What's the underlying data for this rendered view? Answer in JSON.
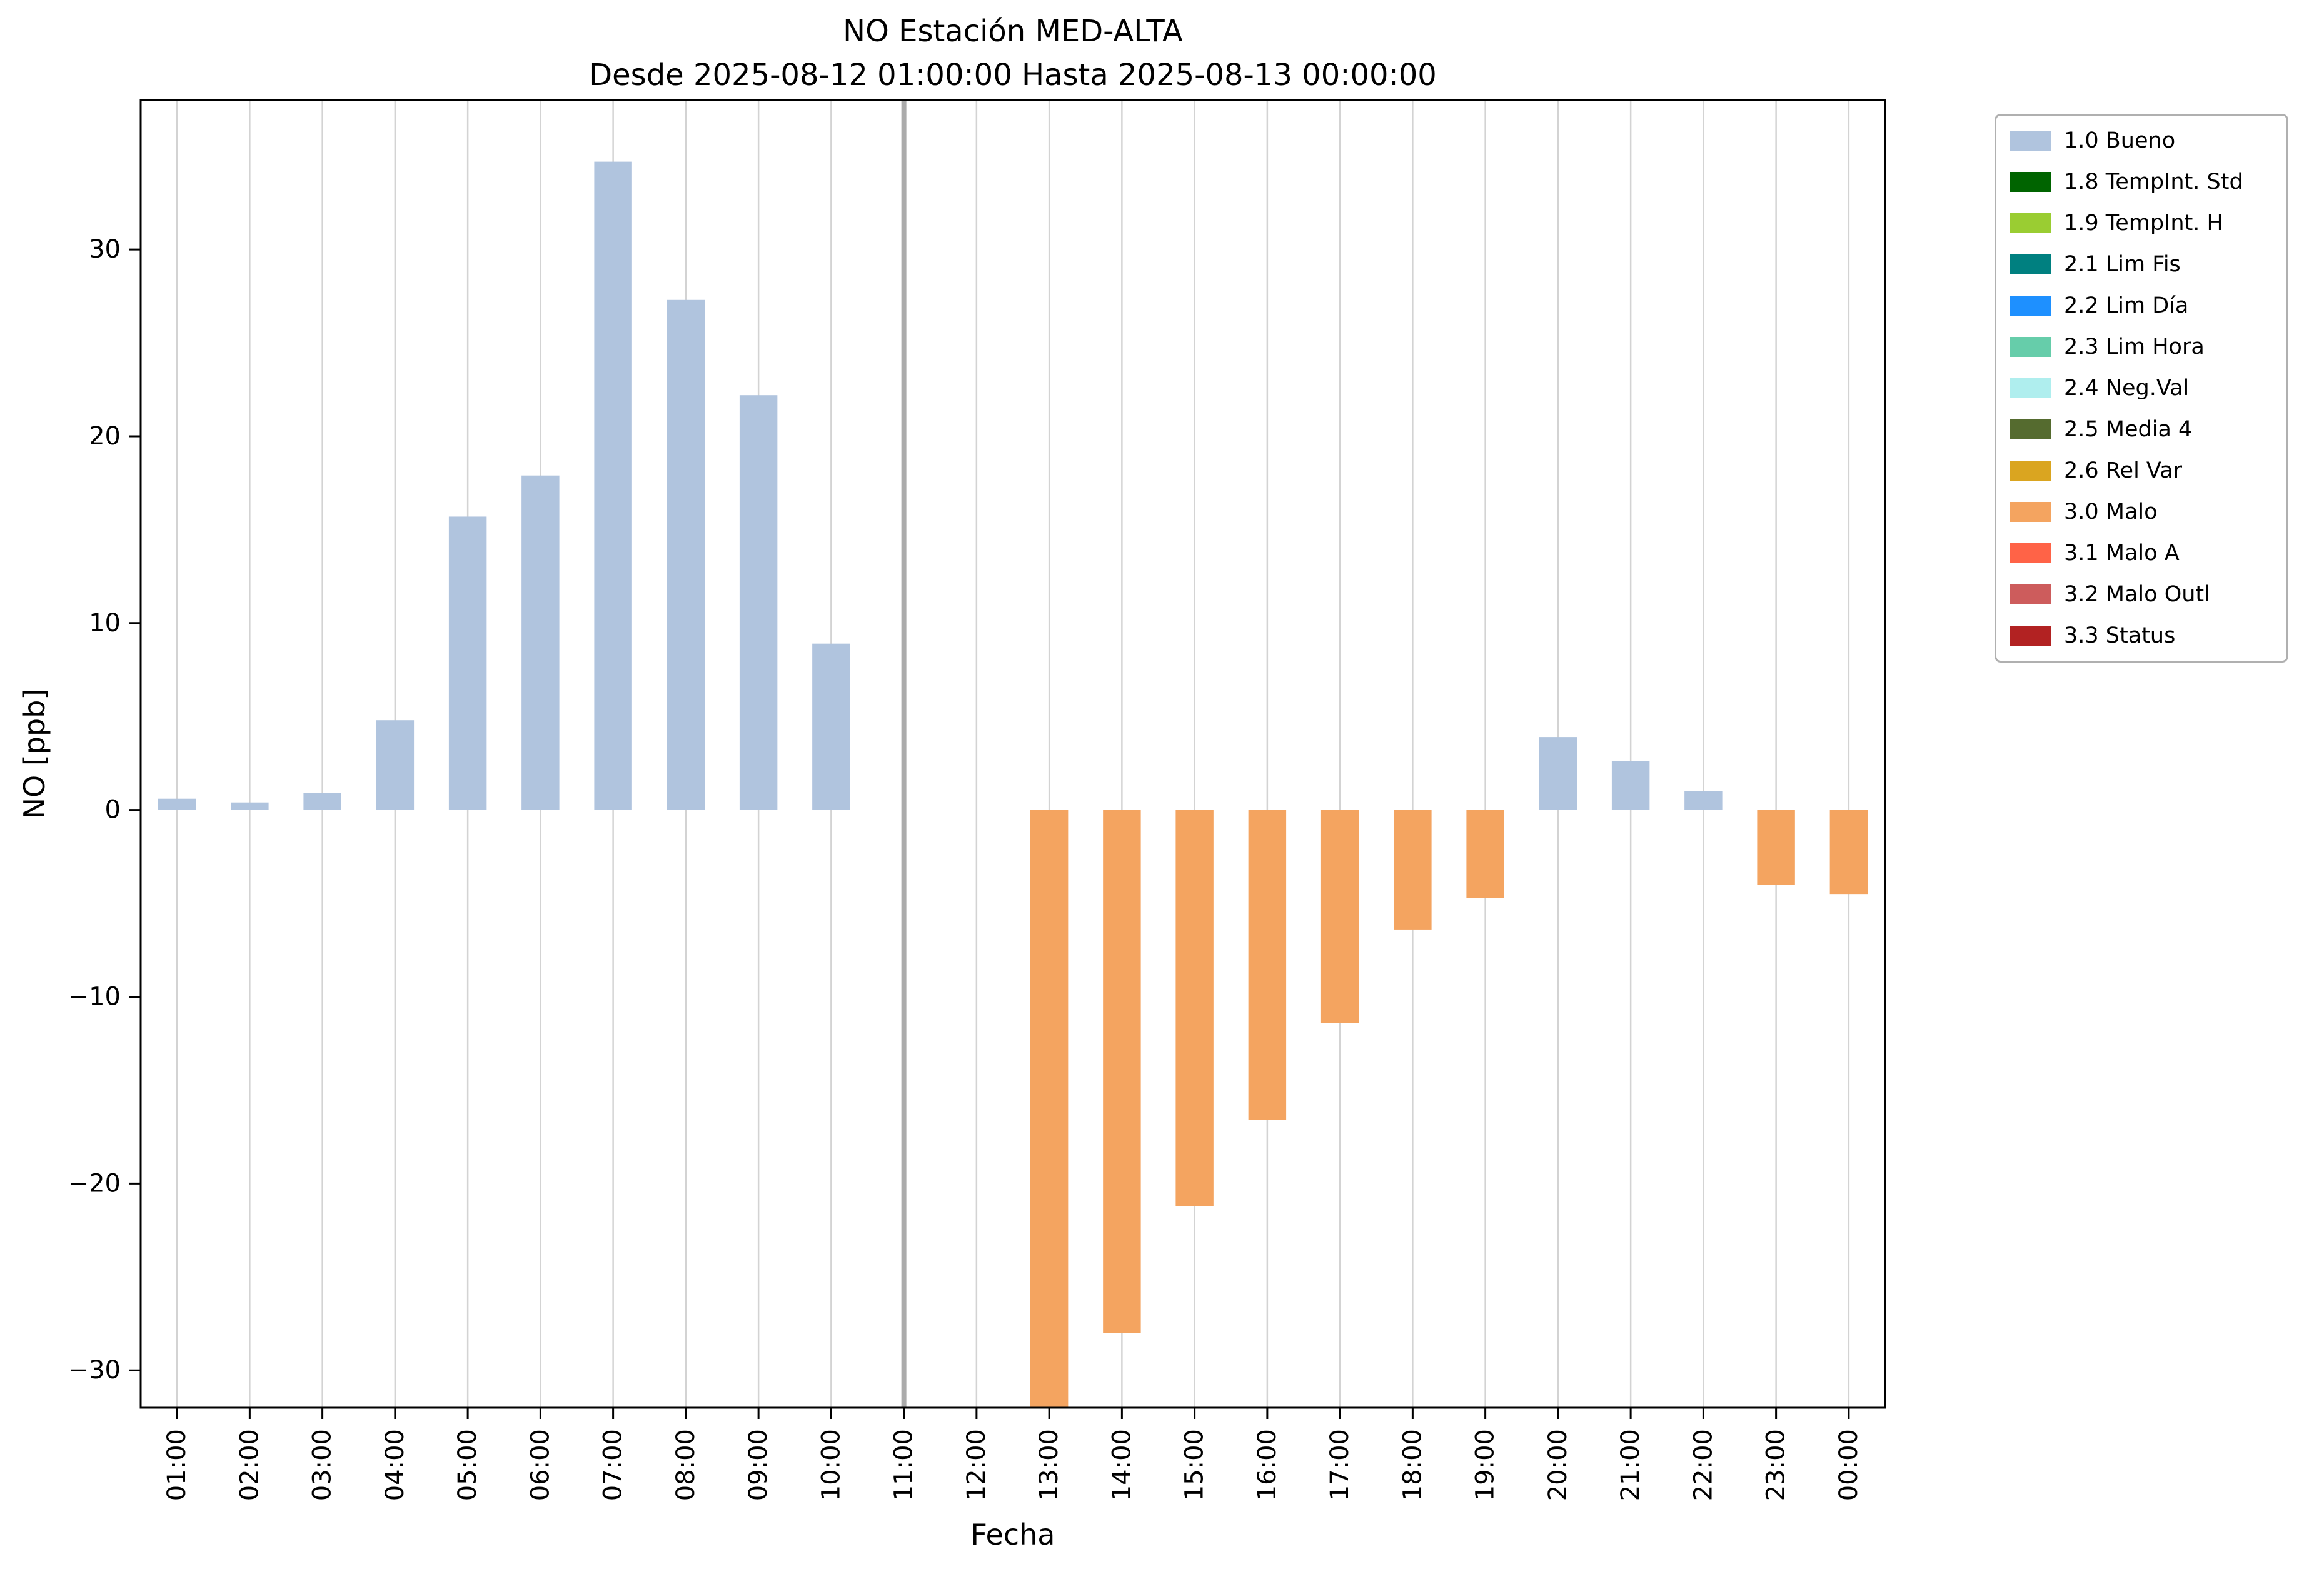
{
  "title": "NO Estación MED-ALTA",
  "subtitle": "Desde 2025-08-12 01:00:00 Hasta 2025-08-13 00:00:00",
  "chart_data": {
    "type": "bar",
    "title": "NO Estación MED-ALTA",
    "subtitle": "Desde 2025-08-12 01:00:00 Hasta 2025-08-13 00:00:00",
    "xlabel": "Fecha",
    "ylabel": "NO [ppb]",
    "categories": [
      "01:00",
      "02:00",
      "03:00",
      "04:00",
      "05:00",
      "06:00",
      "07:00",
      "08:00",
      "09:00",
      "10:00",
      "11:00",
      "12:00",
      "13:00",
      "14:00",
      "15:00",
      "16:00",
      "17:00",
      "18:00",
      "19:00",
      "20:00",
      "21:00",
      "22:00",
      "23:00",
      "00:00"
    ],
    "values": [
      0.6,
      0.4,
      0.9,
      4.8,
      15.7,
      17.9,
      34.7,
      27.3,
      22.2,
      8.9,
      null,
      null,
      -32,
      -28,
      -21.2,
      -16.6,
      -11.4,
      -6.4,
      -4.7,
      3.9,
      2.6,
      1.0,
      -4.0,
      -4.5
    ],
    "statuses": [
      "bueno",
      "bueno",
      "bueno",
      "bueno",
      "bueno",
      "bueno",
      "bueno",
      "bueno",
      "bueno",
      "bueno",
      null,
      null,
      "malo",
      "malo",
      "malo",
      "malo",
      "malo",
      "malo",
      "malo",
      "bueno",
      "bueno",
      "bueno",
      "malo",
      "malo"
    ],
    "colors": {
      "bueno": "#b0c4de",
      "malo": "#f4a460"
    },
    "ylim": [
      -32,
      38
    ],
    "yticks": [
      -30,
      -20,
      -10,
      0,
      10,
      20,
      30
    ],
    "grid": "vertical",
    "marker_line_category": "11:00",
    "legend": {
      "position": "top-right",
      "entries": [
        {
          "label": "1.0 Bueno",
          "color": "#b0c4de"
        },
        {
          "label": "1.8 TempInt. Std",
          "color": "#006400"
        },
        {
          "label": "1.9 TempInt. H",
          "color": "#9acd32"
        },
        {
          "label": "2.1 Lim Fis",
          "color": "#008080"
        },
        {
          "label": "2.2 Lim Día",
          "color": "#1e90ff"
        },
        {
          "label": "2.3 Lim Hora",
          "color": "#66cdaa"
        },
        {
          "label": "2.4 Neg.Val",
          "color": "#afeeee"
        },
        {
          "label": "2.5 Media 4",
          "color": "#556b2f"
        },
        {
          "label": "2.6 Rel Var",
          "color": "#daa520"
        },
        {
          "label": "3.0 Malo",
          "color": "#f4a460"
        },
        {
          "label": "3.1 Malo A",
          "color": "#ff6347"
        },
        {
          "label": "3.2 Malo Outl",
          "color": "#cd5c5c"
        },
        {
          "label": "3.3 Status",
          "color": "#b22222"
        }
      ]
    }
  }
}
